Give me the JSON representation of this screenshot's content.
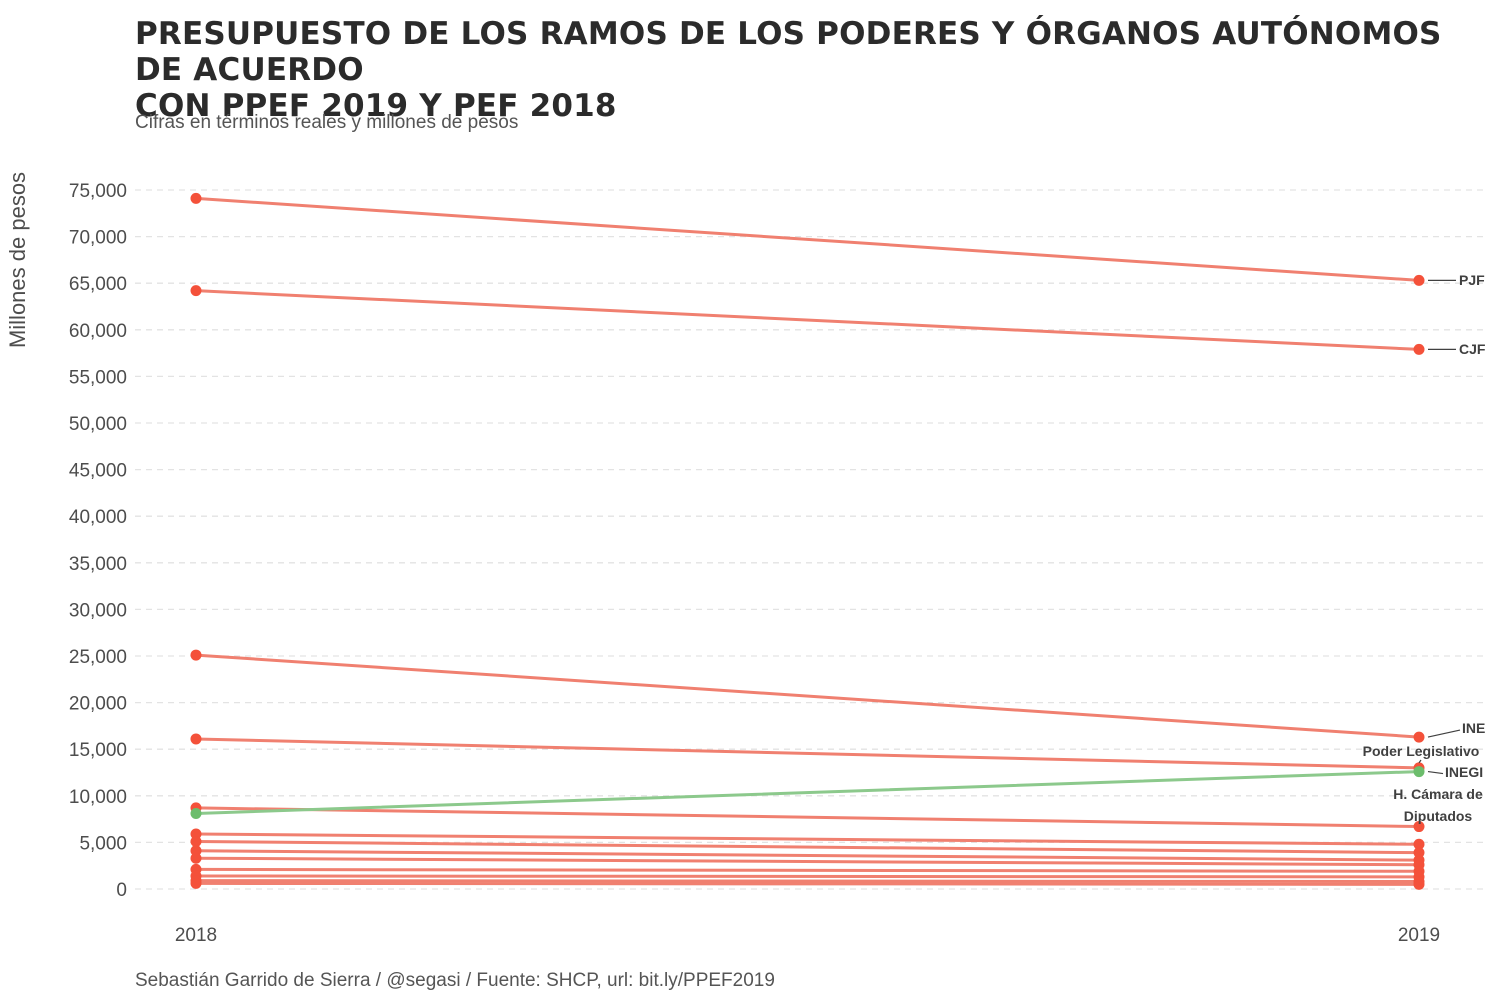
{
  "chart_data": {
    "type": "line",
    "title_lines": [
      "PRESUPUESTO DE LOS RAMOS DE LOS PODERES Y ÓRGANOS AUTÓNOMOS DE ACUERDO",
      "CON PPEF 2019 Y PEF 2018"
    ],
    "subtitle": "Cifras en términos reales y millones de pesos",
    "caption": "Sebastián Garrido de Sierra / @segasi / Fuente: SHCP, url: bit.ly/PPEF2019",
    "ylabel": "Millones de pesos",
    "xlabel": "",
    "categories": [
      "2018",
      "2019"
    ],
    "ylim": [
      0,
      75000
    ],
    "yticks": [
      "0",
      "5,000",
      "10,000",
      "15,000",
      "20,000",
      "25,000",
      "30,000",
      "35,000",
      "40,000",
      "45,000",
      "50,000",
      "55,000",
      "60,000",
      "65,000",
      "70,000",
      "75,000"
    ],
    "grid": true,
    "legend": "none",
    "colors": {
      "decrease": "#f08070",
      "increase": "#8cc98c",
      "point_decrease": "#f4513a",
      "point_increase": "#6cbd6c"
    },
    "series": [
      {
        "label": "PJF",
        "values": [
          74100,
          65300
        ],
        "trend": "decrease"
      },
      {
        "label": "CJF",
        "values": [
          64200,
          57900
        ],
        "trend": "decrease"
      },
      {
        "label": "INE",
        "values": [
          25100,
          16300
        ],
        "trend": "decrease"
      },
      {
        "label": "Poder Legislativo",
        "values": [
          16100,
          13000
        ],
        "trend": "decrease"
      },
      {
        "label": "INEGI",
        "values": [
          8100,
          12600
        ],
        "trend": "increase"
      },
      {
        "label": "H. Cámara de Diputados",
        "values": [
          8700,
          6700
        ],
        "trend": "decrease"
      },
      {
        "label": "",
        "values": [
          5900,
          4800
        ],
        "trend": "decrease"
      },
      {
        "label": "",
        "values": [
          5100,
          3900
        ],
        "trend": "decrease"
      },
      {
        "label": "",
        "values": [
          4100,
          3100
        ],
        "trend": "decrease"
      },
      {
        "label": "",
        "values": [
          3300,
          2600
        ],
        "trend": "decrease"
      },
      {
        "label": "",
        "values": [
          2100,
          1900
        ],
        "trend": "decrease"
      },
      {
        "label": "",
        "values": [
          1400,
          1300
        ],
        "trend": "decrease"
      },
      {
        "label": "",
        "values": [
          900,
          800
        ],
        "trend": "decrease"
      },
      {
        "label": "",
        "values": [
          600,
          500
        ],
        "trend": "decrease"
      }
    ]
  }
}
